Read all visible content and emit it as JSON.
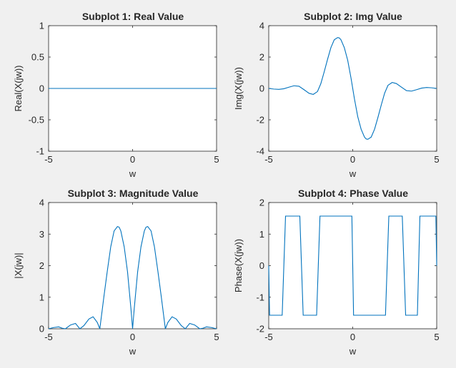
{
  "figure": {
    "background": "#f0f0f0",
    "line_color": "#0072bd"
  },
  "chart_data": [
    {
      "type": "line",
      "title": "Subplot 1: Real Value",
      "xlabel": "w",
      "ylabel": "Real(X(jw))",
      "xlim": [
        -5,
        5
      ],
      "ylim": [
        -1,
        1
      ],
      "xticks": [
        "-5",
        "0",
        "5"
      ],
      "yticks": [
        "-1",
        "-0.5",
        "0",
        "0.5",
        "1"
      ],
      "grid": false,
      "series": [
        {
          "x": [
            -5,
            5
          ],
          "y": [
            0,
            0
          ]
        }
      ]
    },
    {
      "type": "line",
      "title": "Subplot 2: Img Value",
      "xlabel": "w",
      "ylabel": "Img(X(jw))",
      "xlim": [
        -5,
        5
      ],
      "ylim": [
        -4,
        4
      ],
      "xticks": [
        "-5",
        "0",
        "5"
      ],
      "yticks": [
        "-4",
        "-2",
        "0",
        "2",
        "4"
      ],
      "grid": false,
      "series": [
        {
          "x": [
            -5,
            -4.7,
            -4.4,
            -4.1,
            -3.8,
            -3.5,
            -3.2,
            -2.9,
            -2.6,
            -2.35,
            -2.1,
            -1.9,
            -1.7,
            -1.5,
            -1.3,
            -1.1,
            -0.9,
            -0.8,
            -0.7,
            -0.5,
            -0.3,
            -0.1,
            0,
            0.1,
            0.3,
            0.5,
            0.7,
            0.8,
            0.9,
            1.1,
            1.3,
            1.5,
            1.7,
            1.9,
            2.1,
            2.35,
            2.6,
            2.9,
            3.2,
            3.5,
            3.8,
            4.1,
            4.4,
            4.7,
            5
          ],
          "y": [
            0.0,
            -0.04,
            -0.06,
            -0.02,
            0.08,
            0.17,
            0.14,
            -0.08,
            -0.31,
            -0.38,
            -0.2,
            0.3,
            1.05,
            1.85,
            2.6,
            3.1,
            3.24,
            3.22,
            3.1,
            2.6,
            1.8,
            0.65,
            0,
            -0.65,
            -1.8,
            -2.6,
            -3.1,
            -3.22,
            -3.24,
            -3.1,
            -2.6,
            -1.85,
            -1.05,
            -0.3,
            0.2,
            0.38,
            0.31,
            0.08,
            -0.14,
            -0.17,
            -0.08,
            0.02,
            0.06,
            0.04,
            0.0
          ]
        }
      ]
    },
    {
      "type": "line",
      "title": "Subplot 3: Magnitude Value",
      "xlabel": "w",
      "ylabel": "|X(jw)|",
      "xlim": [
        -5,
        5
      ],
      "ylim": [
        0,
        4
      ],
      "xticks": [
        "-5",
        "0",
        "5"
      ],
      "yticks": [
        "0",
        "1",
        "2",
        "3",
        "4"
      ],
      "grid": false,
      "series": [
        {
          "x": [
            -5,
            -4.7,
            -4.4,
            -4.2,
            -4.0,
            -3.7,
            -3.4,
            -3.14,
            -2.9,
            -2.6,
            -2.35,
            -2.1,
            -1.95,
            -1.7,
            -1.5,
            -1.3,
            -1.1,
            -0.9,
            -0.8,
            -0.7,
            -0.5,
            -0.3,
            -0.1,
            0,
            0.1,
            0.3,
            0.5,
            0.7,
            0.8,
            0.9,
            1.1,
            1.3,
            1.5,
            1.7,
            1.95,
            2.1,
            2.35,
            2.6,
            2.9,
            3.14,
            3.4,
            3.7,
            4.0,
            4.2,
            4.4,
            4.7,
            5
          ],
          "y": [
            0.0,
            0.04,
            0.06,
            0.02,
            0.0,
            0.12,
            0.17,
            0.0,
            0.1,
            0.31,
            0.38,
            0.2,
            0.0,
            1.05,
            1.85,
            2.6,
            3.1,
            3.24,
            3.22,
            3.1,
            2.6,
            1.8,
            0.65,
            0.0,
            0.65,
            1.8,
            2.6,
            3.1,
            3.22,
            3.24,
            3.1,
            2.6,
            1.85,
            1.05,
            0.0,
            0.2,
            0.38,
            0.31,
            0.1,
            0.0,
            0.17,
            0.12,
            0.0,
            0.02,
            0.06,
            0.04,
            0.0
          ]
        }
      ]
    },
    {
      "type": "line",
      "title": "Subplot 4: Phase Value",
      "xlabel": "w",
      "ylabel": "Phase(X(jw))",
      "xlim": [
        -5,
        5
      ],
      "ylim": [
        -2,
        2
      ],
      "xticks": [
        "-5",
        "0",
        "5"
      ],
      "yticks": [
        "-2",
        "-1",
        "0",
        "1",
        "2"
      ],
      "grid": false,
      "series": [
        {
          "x": [
            -5,
            -4.95,
            -4.2,
            -4.0,
            -3.85,
            -3.15,
            -2.95,
            -2.15,
            -1.95,
            -0.05,
            0.05,
            1.95,
            2.15,
            2.95,
            3.15,
            3.85,
            4.0,
            4.2,
            4.95,
            5
          ],
          "y": [
            0.0,
            -1.5708,
            -1.5708,
            1.5708,
            1.5708,
            1.5708,
            -1.5708,
            -1.5708,
            1.5708,
            1.5708,
            -1.5708,
            -1.5708,
            1.5708,
            1.5708,
            -1.5708,
            -1.5708,
            1.5708,
            1.5708,
            1.5708,
            0.0
          ]
        }
      ]
    }
  ]
}
